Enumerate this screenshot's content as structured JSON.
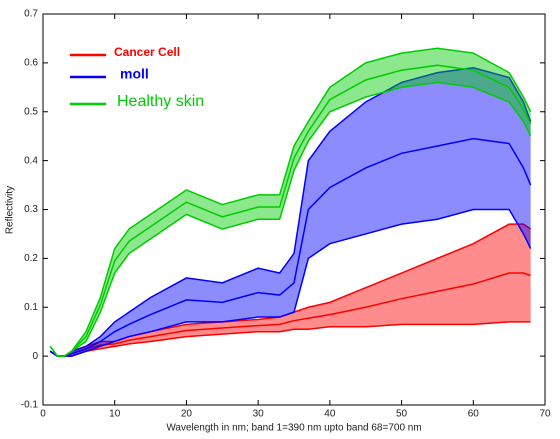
{
  "chart_data": {
    "type": "line",
    "xlabel": "Wavelength in nm; band 1=390 nm upto band 68=700 nm",
    "ylabel": "Reflectivity",
    "x": [
      1,
      2,
      3,
      4,
      6,
      8,
      10,
      12,
      15,
      20,
      25,
      30,
      33,
      35,
      37,
      40,
      45,
      50,
      55,
      60,
      65,
      67,
      68
    ],
    "xlim": [
      0,
      70
    ],
    "xticks": [
      0,
      10,
      20,
      30,
      40,
      50,
      60,
      70
    ],
    "ylim": [
      -0.1,
      0.7
    ],
    "yticks": [
      -0.1,
      0,
      0.1,
      0.2,
      0.3,
      0.4,
      0.5,
      0.6,
      0.7
    ],
    "series": [
      {
        "name": "Cancer Cell",
        "color": "#ff0000",
        "lines": [
          [
            0.01,
            0,
            0,
            0,
            0.01,
            0.015,
            0.02,
            0.025,
            0.03,
            0.04,
            0.045,
            0.05,
            0.05,
            0.055,
            0.055,
            0.06,
            0.06,
            0.065,
            0.065,
            0.065,
            0.07,
            0.07,
            0.07
          ],
          [
            0.01,
            0,
            0,
            0.005,
            0.015,
            0.0225,
            0.025,
            0.0325,
            0.04,
            0.0525,
            0.0575,
            0.0625,
            0.065,
            0.0725,
            0.0775,
            0.085,
            0.1,
            0.1175,
            0.1325,
            0.1475,
            0.17,
            0.17,
            0.165
          ],
          [
            0.01,
            0,
            0,
            0.01,
            0.02,
            0.03,
            0.03,
            0.04,
            0.05,
            0.065,
            0.07,
            0.075,
            0.08,
            0.09,
            0.1,
            0.11,
            0.14,
            0.17,
            0.2,
            0.23,
            0.27,
            0.27,
            0.26
          ]
        ]
      },
      {
        "name": "moll",
        "color": "#0000ff",
        "lines": [
          [
            0.01,
            0,
            0,
            0,
            0.01,
            0.02,
            0.03,
            0.04,
            0.05,
            0.07,
            0.07,
            0.08,
            0.08,
            0.09,
            0.2,
            0.23,
            0.25,
            0.27,
            0.28,
            0.3,
            0.3,
            0.25,
            0.22
          ],
          [
            0.01,
            0,
            0,
            0.005,
            0.015,
            0.03,
            0.05,
            0.065,
            0.085,
            0.115,
            0.11,
            0.13,
            0.125,
            0.15,
            0.3,
            0.345,
            0.385,
            0.415,
            0.43,
            0.445,
            0.435,
            0.385,
            0.35
          ],
          [
            0.01,
            0,
            0,
            0.01,
            0.02,
            0.04,
            0.07,
            0.09,
            0.12,
            0.16,
            0.15,
            0.18,
            0.17,
            0.21,
            0.4,
            0.46,
            0.52,
            0.56,
            0.58,
            0.59,
            0.57,
            0.52,
            0.48
          ]
        ]
      },
      {
        "name": "Healthy skin",
        "color": "#00cc00",
        "lines": [
          [
            0.02,
            0,
            0,
            0.01,
            0.03,
            0.09,
            0.17,
            0.21,
            0.24,
            0.29,
            0.26,
            0.28,
            0.28,
            0.38,
            0.44,
            0.5,
            0.53,
            0.55,
            0.56,
            0.55,
            0.52,
            0.48,
            0.45
          ],
          [
            0.02,
            0,
            0,
            0.01,
            0.04,
            0.105,
            0.195,
            0.235,
            0.265,
            0.315,
            0.285,
            0.305,
            0.305,
            0.405,
            0.46,
            0.525,
            0.565,
            0.585,
            0.595,
            0.585,
            0.55,
            0.505,
            0.475
          ],
          [
            0.02,
            0,
            0,
            0.01,
            0.05,
            0.12,
            0.22,
            0.26,
            0.29,
            0.34,
            0.31,
            0.33,
            0.33,
            0.43,
            0.48,
            0.55,
            0.6,
            0.62,
            0.63,
            0.62,
            0.58,
            0.53,
            0.5
          ]
        ]
      }
    ]
  }
}
